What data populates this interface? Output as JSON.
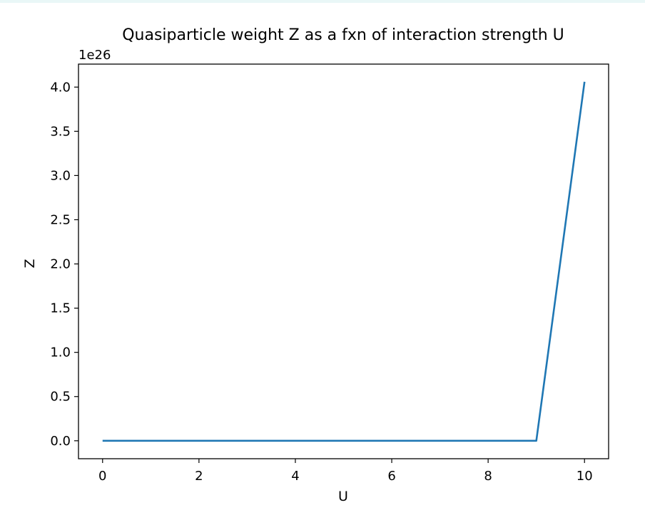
{
  "chart_data": {
    "type": "line",
    "title": "Quasiparticle weight Z as a fxn of interaction strength U",
    "xlabel": "U",
    "ylabel": "Z",
    "y_offset_label": "1e26",
    "y_scale": 1e+26,
    "xlim": [
      -0.5,
      10.5
    ],
    "ylim": [
      -0.203,
      4.26
    ],
    "x_ticks": [
      0,
      2,
      4,
      6,
      8,
      10
    ],
    "x_tick_labels": [
      "0",
      "2",
      "4",
      "6",
      "8",
      "10"
    ],
    "y_ticks": [
      0.0,
      0.5,
      1.0,
      1.5,
      2.0,
      2.5,
      3.0,
      3.5,
      4.0
    ],
    "y_tick_labels": [
      "0.0",
      "0.5",
      "1.0",
      "1.5",
      "2.0",
      "2.5",
      "3.0",
      "3.5",
      "4.0"
    ],
    "grid": false,
    "series": [
      {
        "color": "#1f77b4",
        "x": [
          0,
          1,
          2,
          3,
          4,
          5,
          6,
          7,
          8,
          9,
          10
        ],
        "y": [
          0,
          0,
          0,
          0,
          0,
          0,
          0,
          0,
          0,
          0,
          4.06
        ]
      }
    ]
  }
}
